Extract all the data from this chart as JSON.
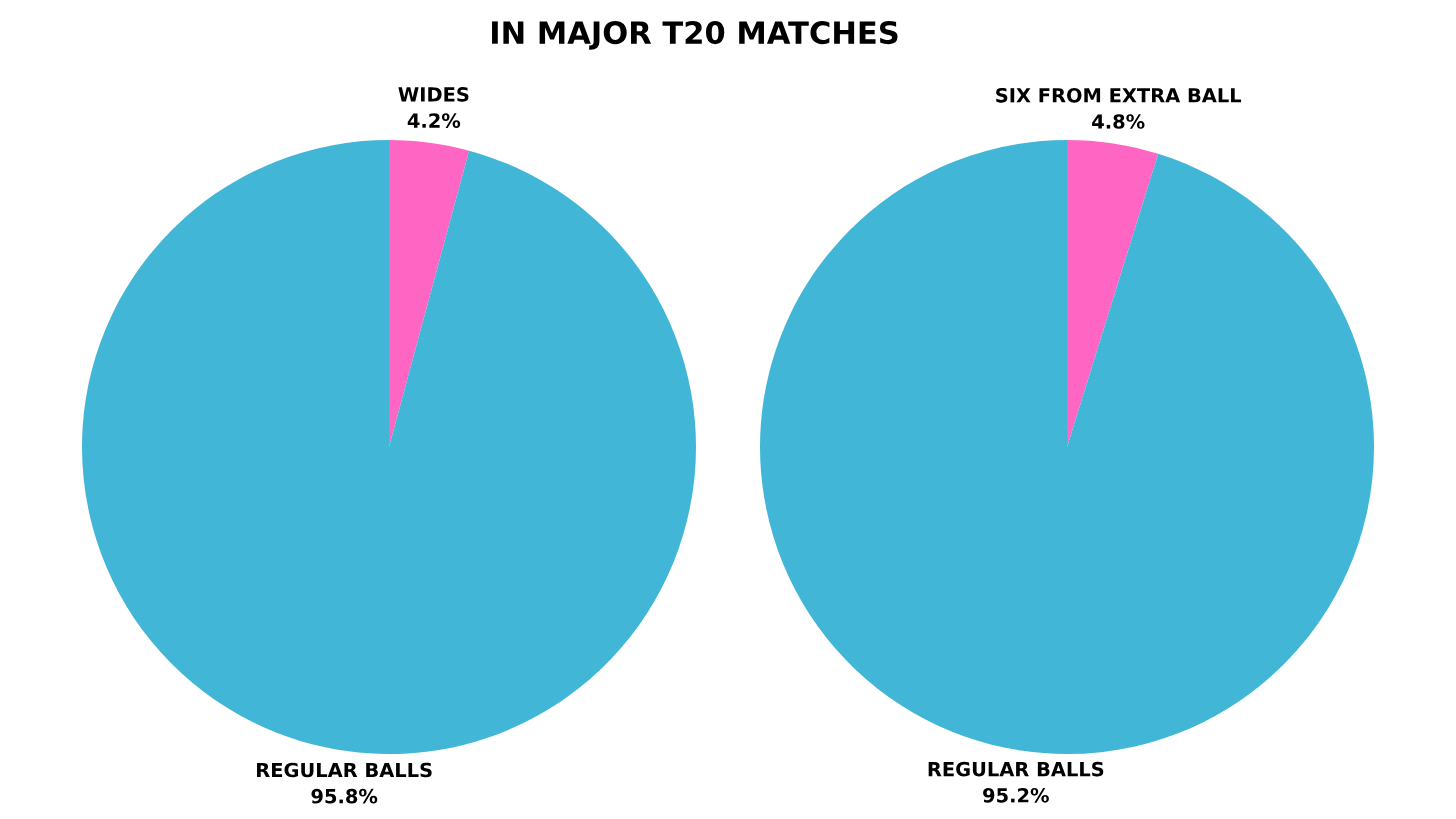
{
  "chart_data": [
    {
      "type": "pie",
      "title": "IN MAJOR T20 MATCHES",
      "categories": [
        "WIDES",
        "REGULAR BALLS"
      ],
      "values": [
        4.2,
        95.8
      ],
      "colors": [
        "#ff66c4",
        "#41b6d6"
      ],
      "value_labels": [
        "4.2%",
        "95.8%"
      ]
    },
    {
      "type": "pie",
      "categories": [
        "SIX FROM EXTRA BALL",
        "REGULAR BALLS"
      ],
      "values": [
        4.8,
        95.2
      ],
      "colors": [
        "#ff66c4",
        "#41b6d6"
      ],
      "value_labels": [
        "4.8%",
        "95.2%"
      ]
    }
  ]
}
